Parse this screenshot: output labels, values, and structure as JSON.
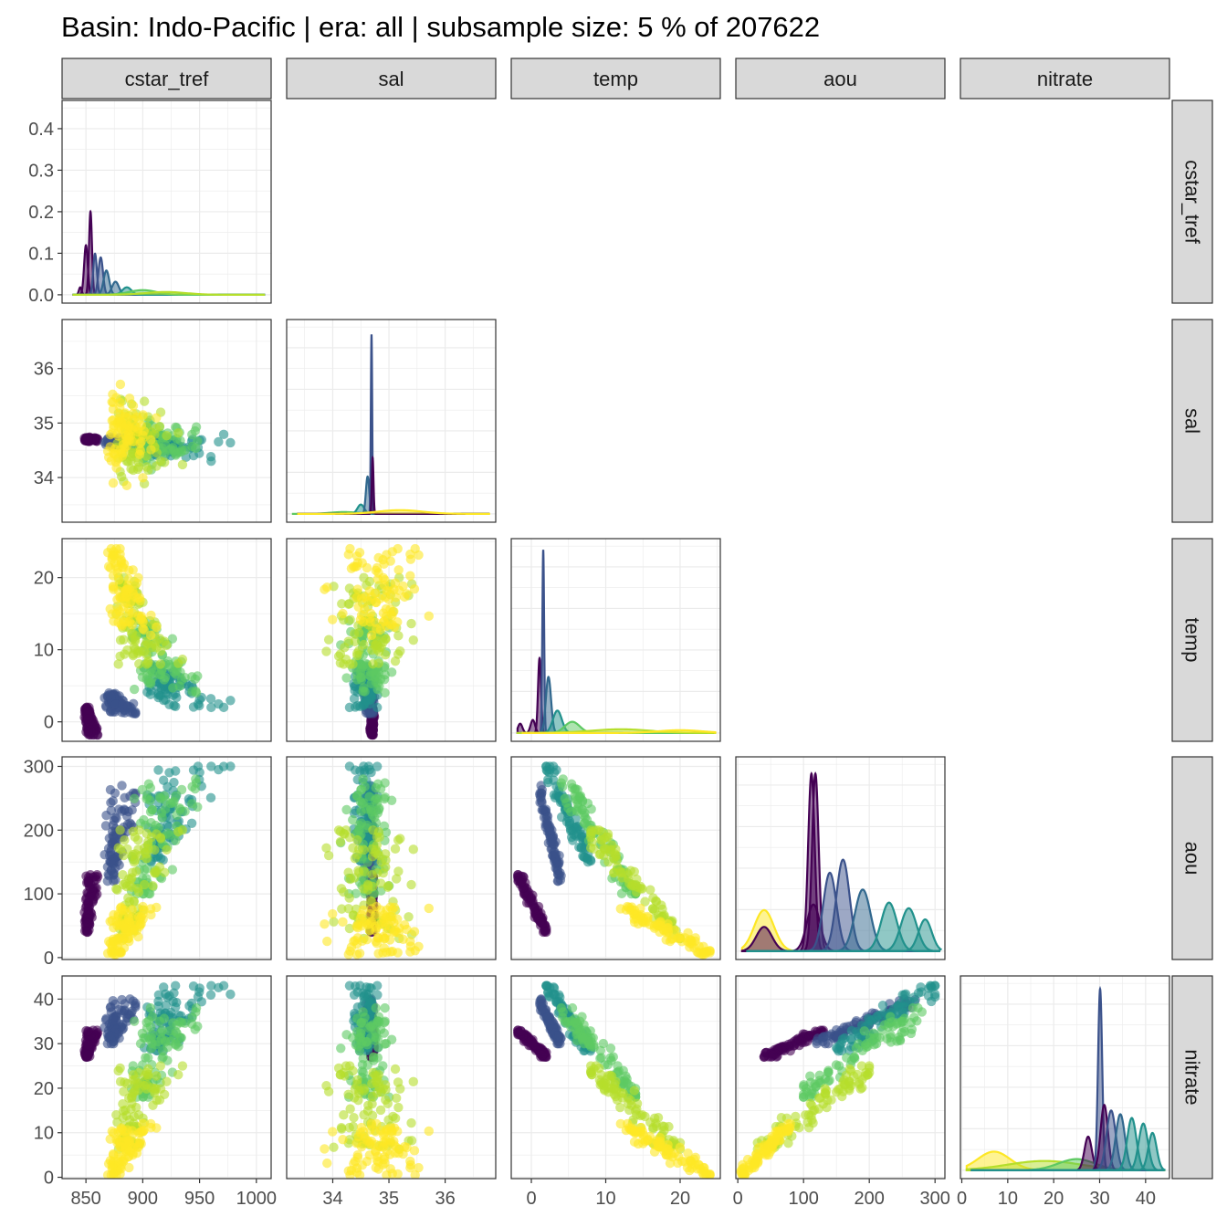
{
  "chart_data": {
    "type": "scatter",
    "title": "Basin: Indo-Pacific | era: all | subsample size: 5 % of 207622",
    "layout": "pairs-matrix (lower triangle scatter, diagonal density)",
    "color_scale": {
      "name": "viridis",
      "stops": [
        "#440154",
        "#3b528b",
        "#21918c",
        "#5ec962",
        "#fde725"
      ],
      "meaning": "shallow / warm = yellow, deep / cold = purple"
    },
    "point_alpha": 0.6,
    "grid": true,
    "variables": [
      {
        "name": "cstar_tref",
        "range": [
          829,
          1013
        ],
        "ticks": [
          850,
          900,
          950,
          1000
        ]
      },
      {
        "name": "sal",
        "range": [
          33.18,
          36.9
        ],
        "ticks": [
          34,
          35,
          36
        ]
      },
      {
        "name": "temp",
        "range": [
          -2.7,
          25.4
        ],
        "ticks": [
          0,
          10,
          20
        ]
      },
      {
        "name": "aou",
        "range": [
          -3,
          315
        ],
        "ticks": [
          0,
          100,
          200,
          300
        ]
      },
      {
        "name": "nitrate",
        "range": [
          -0.3,
          45.2
        ],
        "ticks": [
          0,
          10,
          20,
          30,
          40
        ]
      }
    ],
    "diag_y_axis": {
      "range": [
        -0.02,
        0.468
      ],
      "ticks": [
        "0.0",
        "0.1",
        "0.2",
        "0.3",
        "0.4"
      ]
    },
    "water_masses": [
      {
        "color": "#fde725",
        "cstar_tref": [
          855,
          915
        ],
        "sal": [
          33.8,
          35.8
        ],
        "temp": [
          12,
          24
        ],
        "aou": [
          5,
          80
        ],
        "nitrate": [
          0.5,
          12
        ]
      },
      {
        "color": "#b5de2b",
        "cstar_tref": [
          860,
          935
        ],
        "sal": [
          33.8,
          35.6
        ],
        "temp": [
          8,
          20
        ],
        "aou": [
          30,
          200
        ],
        "nitrate": [
          5,
          25
        ]
      },
      {
        "color": "#5ec962",
        "cstar_tref": [
          870,
          960
        ],
        "sal": [
          34.1,
          35.2
        ],
        "temp": [
          4,
          14
        ],
        "aou": [
          100,
          280
        ],
        "nitrate": [
          18,
          38
        ]
      },
      {
        "color": "#21918c",
        "cstar_tref": [
          875,
          980
        ],
        "sal": [
          34.3,
          34.9
        ],
        "temp": [
          2,
          8
        ],
        "aou": [
          150,
          300
        ],
        "nitrate": [
          28,
          43
        ]
      },
      {
        "color": "#3b528b",
        "cstar_tref": [
          858,
          900
        ],
        "sal": [
          34.55,
          34.75
        ],
        "temp": [
          1,
          4
        ],
        "aou": [
          120,
          270
        ],
        "nitrate": [
          30,
          40
        ]
      },
      {
        "color": "#440154",
        "cstar_tref": [
          845,
          862
        ],
        "sal": [
          34.65,
          34.75
        ],
        "temp": [
          -1.8,
          2
        ],
        "aou": [
          40,
          130
        ],
        "nitrate": [
          27,
          33
        ]
      }
    ],
    "diagonal_peaks": [
      {
        "variable": "cstar_tref",
        "peaks": [
          {
            "x": 845,
            "h": 0.04,
            "w": 1.2,
            "color": "#440154"
          },
          {
            "x": 850,
            "h": 0.265,
            "w": 1.6,
            "color": "#440154"
          },
          {
            "x": 854,
            "h": 0.445,
            "w": 1.3,
            "color": "#440154"
          },
          {
            "x": 858,
            "h": 0.22,
            "w": 1.6,
            "color": "#3b528b"
          },
          {
            "x": 863,
            "h": 0.2,
            "w": 2,
            "color": "#3b528b"
          },
          {
            "x": 868,
            "h": 0.13,
            "w": 2.5,
            "color": "#31688e"
          },
          {
            "x": 876,
            "h": 0.07,
            "w": 3,
            "color": "#31688e"
          },
          {
            "x": 886,
            "h": 0.04,
            "w": 4,
            "color": "#21918c"
          },
          {
            "x": 900,
            "h": 0.025,
            "w": 12,
            "color": "#5ec962"
          },
          {
            "x": 920,
            "h": 0.015,
            "w": 18,
            "color": "#b5de2b"
          }
        ]
      },
      {
        "variable": "sal",
        "peaks": [
          {
            "x": 34.2,
            "h": 0.01,
            "w": 0.25,
            "color": "#5ec962"
          },
          {
            "x": 34.5,
            "h": 0.05,
            "w": 0.06,
            "color": "#21918c"
          },
          {
            "x": 34.62,
            "h": 0.2,
            "w": 0.03,
            "color": "#31688e"
          },
          {
            "x": 34.69,
            "h": 0.96,
            "w": 0.012,
            "color": "#3b528b"
          },
          {
            "x": 34.71,
            "h": 0.3,
            "w": 0.015,
            "color": "#440154"
          },
          {
            "x": 35.2,
            "h": 0.02,
            "w": 0.4,
            "color": "#fde725"
          }
        ]
      },
      {
        "variable": "temp",
        "peaks": [
          {
            "x": -1.5,
            "h": 0.05,
            "w": 0.3,
            "color": "#440154"
          },
          {
            "x": 0.2,
            "h": 0.07,
            "w": 0.3,
            "color": "#440154"
          },
          {
            "x": 1.1,
            "h": 0.4,
            "w": 0.2,
            "color": "#440154"
          },
          {
            "x": 1.6,
            "h": 0.98,
            "w": 0.12,
            "color": "#3b528b"
          },
          {
            "x": 2.3,
            "h": 0.3,
            "w": 0.35,
            "color": "#31688e"
          },
          {
            "x": 3.5,
            "h": 0.12,
            "w": 0.6,
            "color": "#21918c"
          },
          {
            "x": 5.5,
            "h": 0.06,
            "w": 1,
            "color": "#5ec962"
          },
          {
            "x": 12,
            "h": 0.02,
            "w": 4,
            "color": "#b5de2b"
          },
          {
            "x": 20,
            "h": 0.015,
            "w": 3,
            "color": "#fde725"
          }
        ]
      },
      {
        "variable": "aou",
        "peaks": [
          {
            "x": 40,
            "h": 0.22,
            "w": 15,
            "color": "#fde725"
          },
          {
            "x": 40,
            "h": 0.13,
            "w": 12,
            "color": "#440154"
          },
          {
            "x": 112,
            "h": 0.95,
            "w": 5,
            "color": "#440154"
          },
          {
            "x": 118,
            "h": 0.95,
            "w": 5,
            "color": "#440154"
          },
          {
            "x": 115,
            "h": 0.25,
            "w": 10,
            "color": "#440154"
          },
          {
            "x": 140,
            "h": 0.42,
            "w": 10,
            "color": "#3b528b"
          },
          {
            "x": 160,
            "h": 0.49,
            "w": 10,
            "color": "#3b528b"
          },
          {
            "x": 190,
            "h": 0.33,
            "w": 12,
            "color": "#31688e"
          },
          {
            "x": 230,
            "h": 0.26,
            "w": 12,
            "color": "#21918c"
          },
          {
            "x": 260,
            "h": 0.23,
            "w": 12,
            "color": "#21918c"
          },
          {
            "x": 285,
            "h": 0.17,
            "w": 10,
            "color": "#21918c"
          }
        ]
      },
      {
        "variable": "nitrate",
        "peaks": [
          {
            "x": 7,
            "h": 0.1,
            "w": 3.5,
            "color": "#fde725"
          },
          {
            "x": 18,
            "h": 0.05,
            "w": 8,
            "color": "#b5de2b"
          },
          {
            "x": 25,
            "h": 0.06,
            "w": 4,
            "color": "#5ec962"
          },
          {
            "x": 27.5,
            "h": 0.18,
            "w": 0.8,
            "color": "#440154"
          },
          {
            "x": 30.1,
            "h": 0.97,
            "w": 0.45,
            "color": "#3b528b"
          },
          {
            "x": 31,
            "h": 0.35,
            "w": 0.8,
            "color": "#440154"
          },
          {
            "x": 32.5,
            "h": 0.32,
            "w": 1,
            "color": "#3b528b"
          },
          {
            "x": 34.5,
            "h": 0.3,
            "w": 1,
            "color": "#31688e"
          },
          {
            "x": 37,
            "h": 0.28,
            "w": 1,
            "color": "#21918c"
          },
          {
            "x": 39.5,
            "h": 0.25,
            "w": 1,
            "color": "#21918c"
          },
          {
            "x": 41.5,
            "h": 0.2,
            "w": 0.9,
            "color": "#21918c"
          }
        ]
      }
    ]
  }
}
